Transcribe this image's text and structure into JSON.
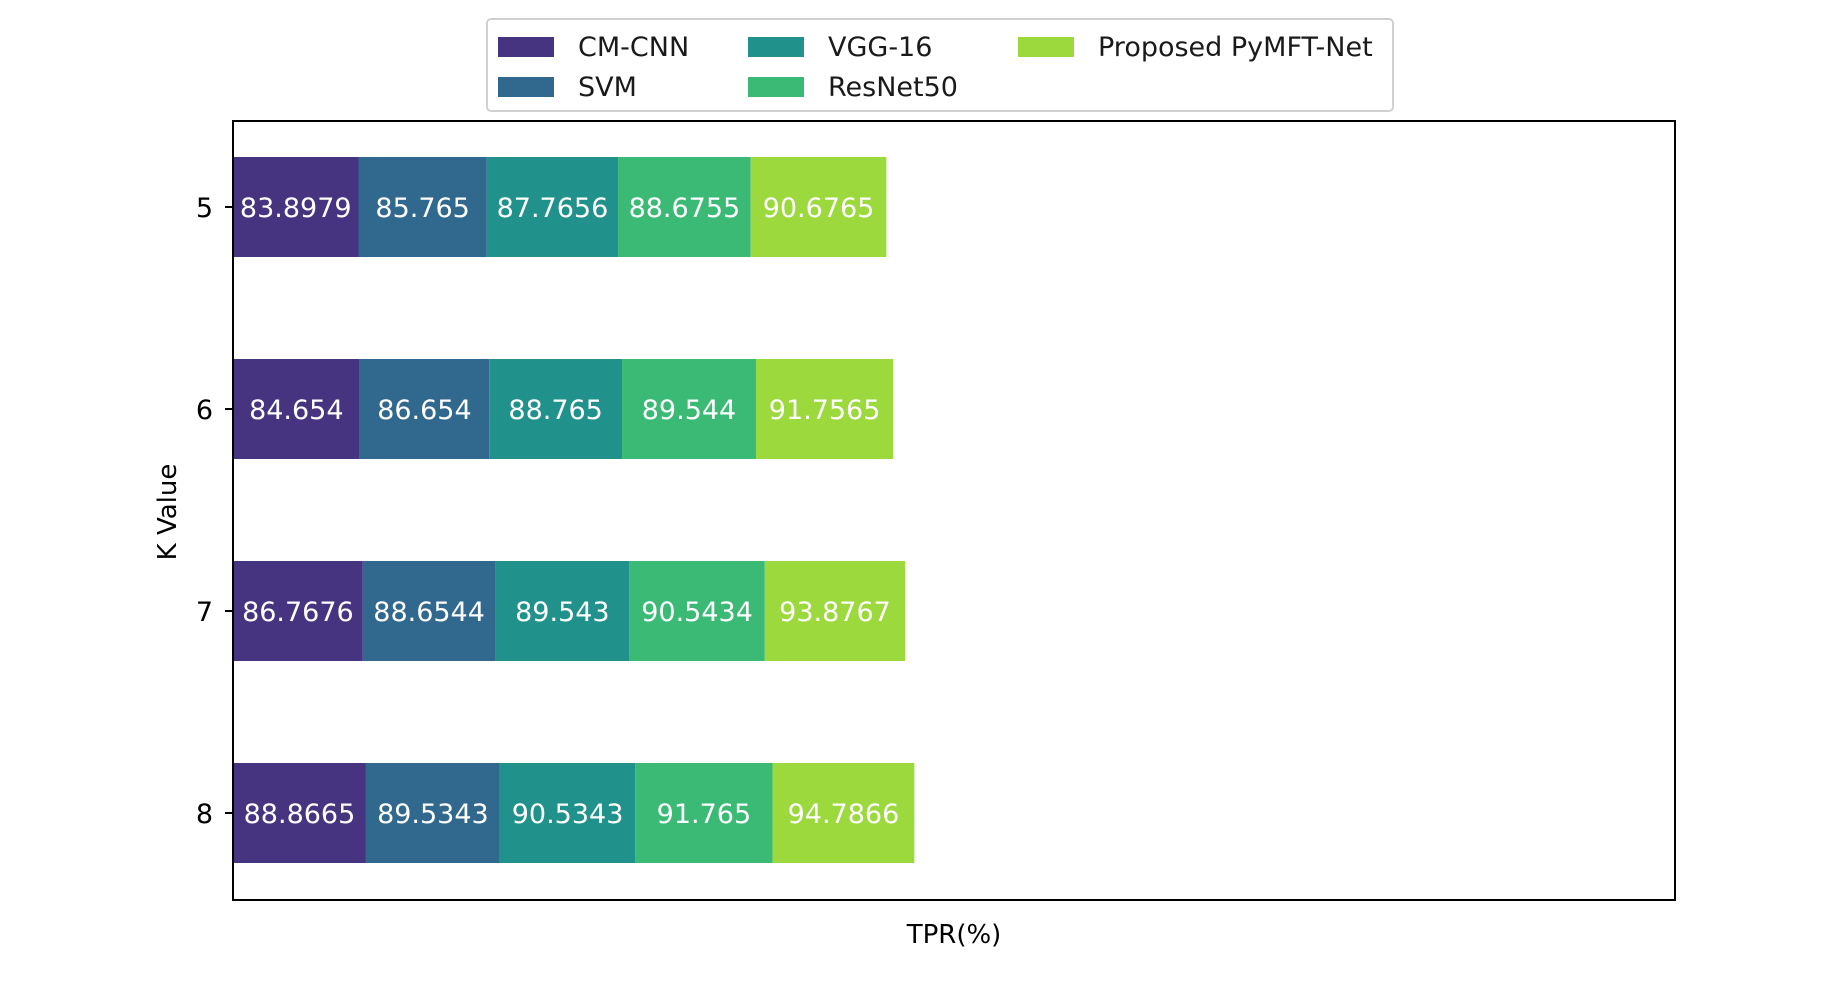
{
  "chart_data": {
    "type": "bar",
    "orientation": "horizontal",
    "stacked": true,
    "categories": [
      "5",
      "6",
      "7",
      "8"
    ],
    "xlabel": "TPR(%)",
    "ylabel": "K Value",
    "show_x_ticks": false,
    "legend_position": "top-center",
    "series": [
      {
        "name": "CM-CNN",
        "color": "#463480",
        "values": [
          83.8979,
          84.654,
          86.7676,
          88.8665
        ],
        "labels": [
          "83.8979",
          "84.654",
          "86.7676",
          "88.8665"
        ]
      },
      {
        "name": "SVM",
        "color": "#31688e",
        "values": [
          85.765,
          86.654,
          88.6544,
          89.5343
        ],
        "labels": [
          "85.765",
          "86.654",
          "88.6544",
          "89.5343"
        ]
      },
      {
        "name": "VGG-16",
        "color": "#21918c",
        "values": [
          87.7656,
          88.765,
          89.543,
          90.5343
        ],
        "labels": [
          "87.7656",
          "88.765",
          "89.543",
          "90.5343"
        ]
      },
      {
        "name": "ResNet50",
        "color": "#3bba75",
        "values": [
          88.6755,
          89.544,
          90.5434,
          91.765
        ],
        "labels": [
          "88.6755",
          "89.544",
          "90.5434",
          "91.765"
        ]
      },
      {
        "name": "Proposed PyMFT-Net",
        "color": "#9bd93c",
        "values": [
          90.6765,
          91.7565,
          93.8767,
          94.7866
        ],
        "labels": [
          "90.6765",
          "91.7565",
          "93.8767",
          "94.7866"
        ]
      }
    ]
  }
}
